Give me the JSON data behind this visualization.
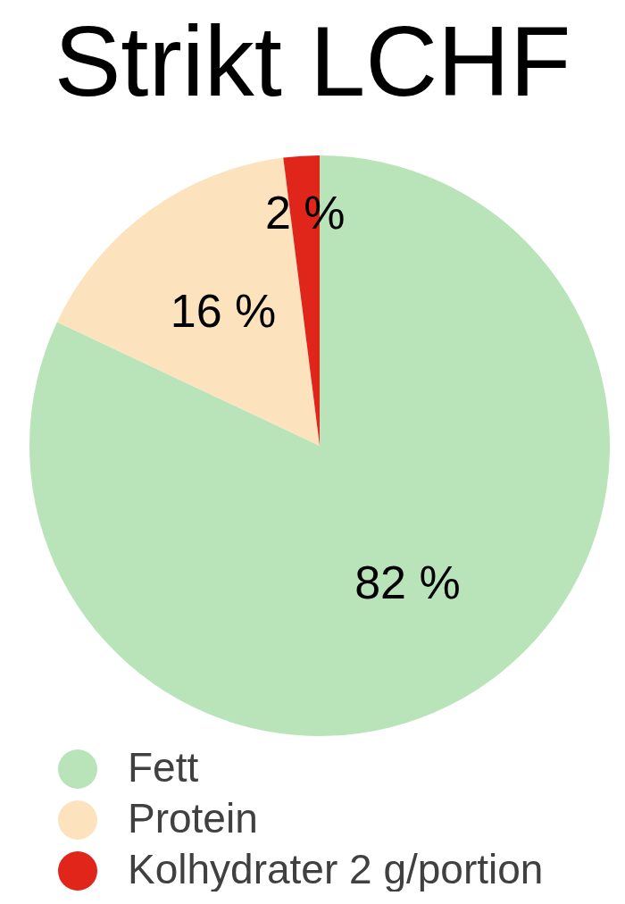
{
  "chart_data": {
    "type": "pie",
    "title": "Strikt LCHF",
    "categories": [
      "Fett",
      "Protein",
      "Kolhydrater 2 g/portion"
    ],
    "values": [
      82,
      16,
      2
    ],
    "colors": [
      "#b9e4b9",
      "#fde2be",
      "#e0261a"
    ],
    "value_labels": [
      "82 %",
      "16 %",
      "2 %"
    ],
    "legend": "bottom left"
  }
}
